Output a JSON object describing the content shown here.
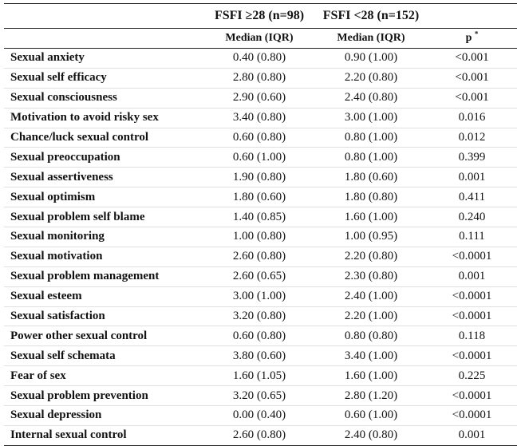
{
  "table": {
    "header": {
      "group1_label": "FSFI ≥28 (n=98)",
      "group2_label": "FSFI <28 (n=152)",
      "col1_sub": "Median (IQR)",
      "col2_sub": "Median (IQR)",
      "p_label": "p",
      "p_marker": "*"
    },
    "rows": [
      {
        "label": "Sexual anxiety",
        "g1": "0.40 (0.80)",
        "g2": "0.90 (1.00)",
        "p": "<0.001"
      },
      {
        "label": "Sexual self efficacy",
        "g1": "2.80 (0.80)",
        "g2": "2.20 (0.80)",
        "p": "<0.001"
      },
      {
        "label": "Sexual consciousness",
        "g1": "2.90 (0.60)",
        "g2": "2.40 (0.80)",
        "p": "<0.001"
      },
      {
        "label": "Motivation to avoid risky sex",
        "g1": "3.40 (0.80)",
        "g2": "3.00 (1.00)",
        "p": "0.016"
      },
      {
        "label": "Chance/luck sexual control",
        "g1": "0.60 (0.80)",
        "g2": "0.80 (1.00)",
        "p": "0.012"
      },
      {
        "label": "Sexual preoccupation",
        "g1": "0.60 (1.00)",
        "g2": "0.80 (1.00)",
        "p": "0.399"
      },
      {
        "label": "Sexual assertiveness",
        "g1": "1.90 (0.80)",
        "g2": "1.80 (0.60)",
        "p": "0.001"
      },
      {
        "label": "Sexual optimism",
        "g1": "1.80 (0.60)",
        "g2": "1.80 (0.80)",
        "p": "0.411"
      },
      {
        "label": "Sexual problem self blame",
        "g1": "1.40 (0.85)",
        "g2": "1.60 (1.00)",
        "p": "0.240"
      },
      {
        "label": "Sexual monitoring",
        "g1": "1.00 (0.80)",
        "g2": "1.00 (0.95)",
        "p": "0.111"
      },
      {
        "label": "Sexual motivation",
        "g1": "2.60 (0.80)",
        "g2": "2.20 (0.80)",
        "p": "<0.0001"
      },
      {
        "label": "Sexual problem management",
        "g1": "2.60 (0.65)",
        "g2": "2.30 (0.80)",
        "p": "0.001"
      },
      {
        "label": "Sexual esteem",
        "g1": "3.00 (1.00)",
        "g2": "2.40 (1.00)",
        "p": "<0.0001"
      },
      {
        "label": "Sexual satisfaction",
        "g1": "3.20 (0.80)",
        "g2": "2.20 (1.00)",
        "p": "<0.0001"
      },
      {
        "label": "Power other sexual control",
        "g1": "0.60 (0.80)",
        "g2": "0.80 (0.80)",
        "p": "0.118"
      },
      {
        "label": "Sexual self schemata",
        "g1": "3.80 (0.60)",
        "g2": "3.40 (1.00)",
        "p": "<0.0001"
      },
      {
        "label": "Fear of sex",
        "g1": "1.60 (1.05)",
        "g2": "1.60 (1.00)",
        "p": "0.225"
      },
      {
        "label": "Sexual problem prevention",
        "g1": "3.20 (0.65)",
        "g2": "2.80 (1.20)",
        "p": "<0.0001"
      },
      {
        "label": "Sexual depression",
        "g1": "0.00 (0.40)",
        "g2": "0.60 (1.00)",
        "p": "<0.0001"
      },
      {
        "label": "Internal sexual control",
        "g1": "2.60 (0.80)",
        "g2": "2.40 (0.80)",
        "p": "0.001"
      }
    ]
  }
}
